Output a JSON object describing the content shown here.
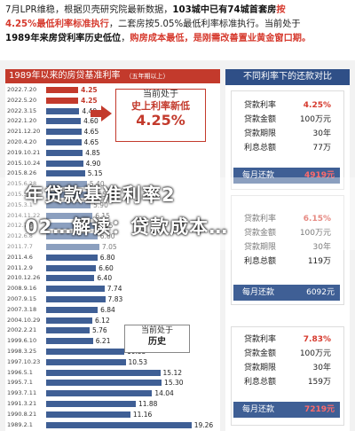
{
  "top_note": {
    "line1": {
      "a": "7月LPR维稳，根据贝壳研究院最新数据，",
      "b": "103城中已有74城首套房",
      "c": "按"
    },
    "line2": {
      "a": "4.25%最低利率标准执行",
      "b": "，二套房按5.05%最低利率标准执行。当前处于"
    },
    "line3": {
      "a": "1989年来房贷利率历史低位",
      "b": "，",
      "c": "购房成本最低，是刚需改善置业黄金窗口期。"
    }
  },
  "left_panel": {
    "title": "1989年以来的房贷基准利率",
    "subtitle": "（五年期以上）",
    "callouts": [
      {
        "line1": "当前处于",
        "line2": "史上利率新低",
        "line3": "4.25%"
      },
      {
        "line1": "当前处于",
        "line2": "历史"
      },
      {
        "line1": "当前处于",
        "line2": "历史"
      }
    ]
  },
  "chart_data": {
    "type": "bar",
    "orientation": "horizontal",
    "title": "1989年以来的房贷基准利率",
    "subtitle": "（五年期以上）",
    "categories": [
      "2022.7.20",
      "2022.5.20",
      "2022.3.15",
      "2022.1.20",
      "2021.12.20",
      "2020.4.20",
      "2019.10.21",
      "2015.10.24",
      "2015.8.26",
      "2015.6.28",
      "2015.5.11",
      "2015.3.1",
      "2014.11.22",
      "2012.7.6",
      "2012.6.8",
      "2011.7.7",
      "2011.4.6",
      "2011.2.9",
      "2010.12.26",
      "2008.9.16",
      "2007.9.15",
      "2007.3.18",
      "2004.10.29",
      "2002.2.21",
      "1999.6.10",
      "1998.3.25",
      "1997.10.23",
      "1996.5.1",
      "1995.7.1",
      "1993.7.11",
      "1991.3.21",
      "1990.8.21",
      "1989.2.1"
    ],
    "values": [
      4.25,
      4.25,
      4.4,
      4.6,
      4.65,
      4.65,
      4.85,
      4.9,
      5.15,
      5.4,
      5.65,
      5.9,
      6.15,
      6.55,
      6.8,
      7.05,
      6.8,
      6.6,
      6.4,
      7.74,
      7.83,
      6.84,
      6.12,
      5.76,
      6.21,
      10.35,
      10.53,
      15.12,
      15.3,
      14.04,
      11.88,
      11.16,
      19.26
    ],
    "highlight": [
      0,
      1
    ],
    "xlim": [
      0,
      20
    ]
  },
  "right_panel": {
    "title": "不同利率下的还款对比",
    "cards": [
      {
        "rows": [
          {
            "k": "贷款利率",
            "v": "4.25%"
          },
          {
            "k": "贷款金额",
            "v": "100万元"
          },
          {
            "k": "贷款期限",
            "v": "30年"
          },
          {
            "k": "利息总额",
            "v": "77万"
          }
        ],
        "pay_label": "每月还款",
        "pay_value": "4919元"
      },
      {
        "rows": [
          {
            "k": "贷款利率",
            "v": "6.15%"
          },
          {
            "k": "贷款金额",
            "v": "100万元"
          },
          {
            "k": "贷款期限",
            "v": "30年"
          },
          {
            "k": "利息总额",
            "v": "119万"
          }
        ],
        "pay_label": "每月还款",
        "pay_value": "6092元"
      },
      {
        "rows": [
          {
            "k": "贷款利率",
            "v": "7.83%"
          },
          {
            "k": "贷款金额",
            "v": "100万元"
          },
          {
            "k": "贷款期限",
            "v": "30年"
          },
          {
            "k": "利息总额",
            "v": "159万"
          }
        ],
        "pay_label": "每月还款",
        "pay_value": "7219元"
      }
    ]
  },
  "overlay_title": {
    "line1": "年贷款基准利率2",
    "line2": "02…解读：贷款成本…"
  }
}
